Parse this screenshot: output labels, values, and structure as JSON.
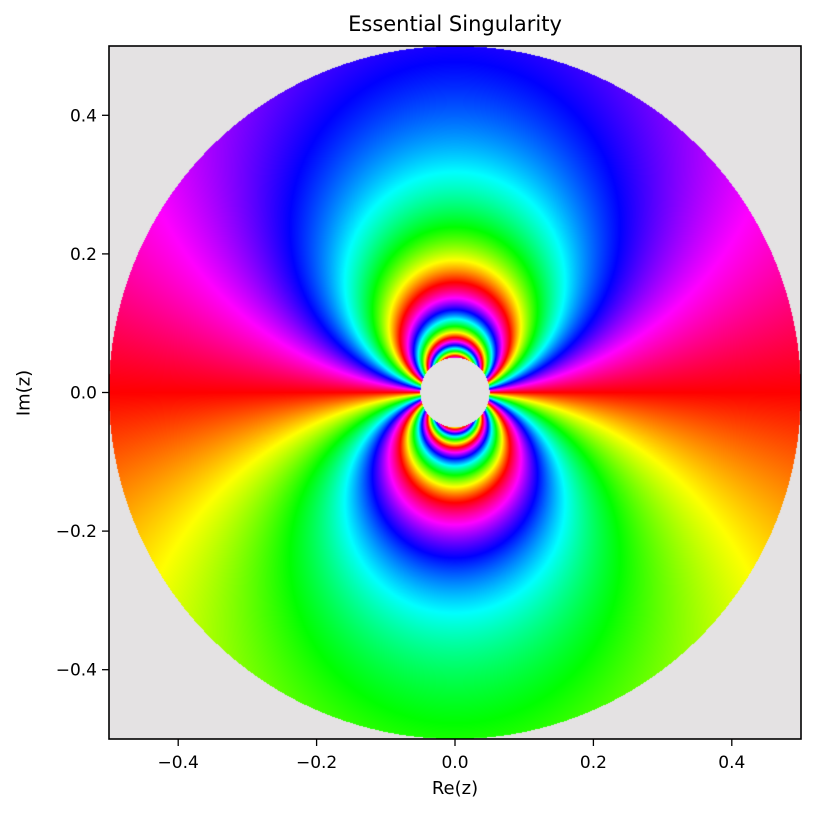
{
  "chart_data": {
    "type": "heatmap",
    "title": "Essential Singularity",
    "xlabel": "Re(z)",
    "ylabel": "Im(z)",
    "xlim": [
      -0.5,
      0.5
    ],
    "ylim": [
      -0.5,
      0.5
    ],
    "xticks": [
      -0.4,
      -0.2,
      0.0,
      0.2,
      0.4
    ],
    "xtick_labels": [
      "−0.4",
      "−0.2",
      "0.0",
      "0.2",
      "0.4"
    ],
    "yticks": [
      0.4,
      0.2,
      0.0,
      -0.2,
      -0.4
    ],
    "ytick_labels": [
      "0.4",
      "0.2",
      "0.0",
      "−0.2",
      "−0.4"
    ],
    "function": "exp(1/z)",
    "color_mapping": "hue = arg(f(z))",
    "domain_outer_radius": 0.5,
    "domain_inner_radius": 0.05,
    "grid": false,
    "colors": {
      "background": "#e4e2e3",
      "axes": "#000000"
    }
  }
}
